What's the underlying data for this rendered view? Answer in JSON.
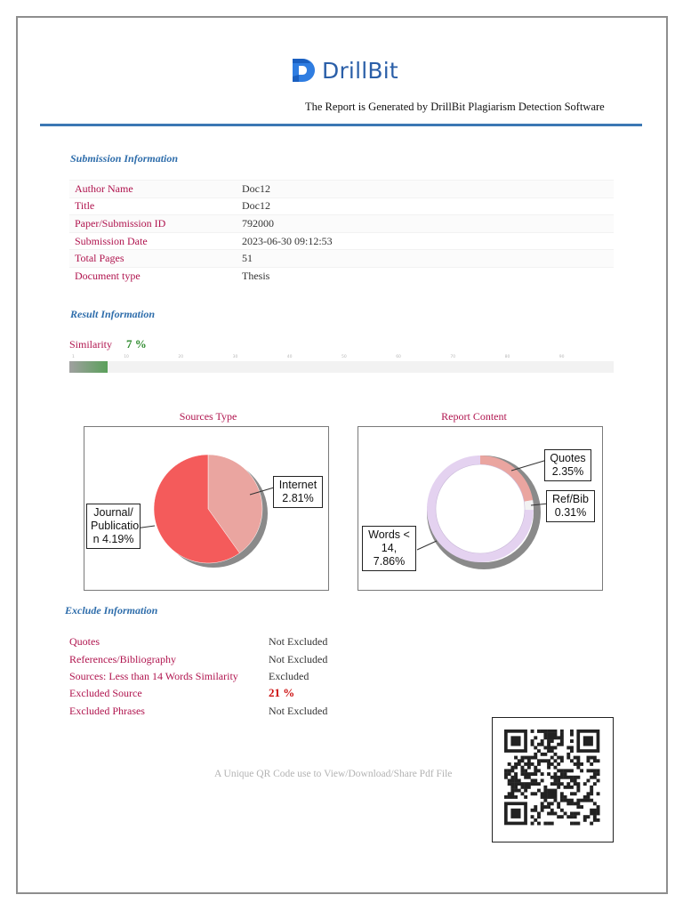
{
  "header": {
    "brand": "DrillBit",
    "tagline": "The Report is Generated by DrillBit Plagiarism Detection Software",
    "colors": {
      "brand": "#2b5fa8",
      "rule": "#3c78b4"
    }
  },
  "submission": {
    "title": "Submission Information",
    "rows": [
      {
        "label": "Author Name",
        "value": "Doc12"
      },
      {
        "label": "Title",
        "value": "Doc12"
      },
      {
        "label": "Paper/Submission ID",
        "value": "792000"
      },
      {
        "label": "Submission Date",
        "value": "2023-06-30 09:12:53"
      },
      {
        "label": "Total Pages",
        "value": "51"
      },
      {
        "label": "Document type",
        "value": "Thesis"
      }
    ]
  },
  "result": {
    "title": "Result Information",
    "similarity_label": "Similarity",
    "similarity_value": "7 %",
    "similarity_percent": 7,
    "scale_ticks": [
      "1",
      "10",
      "20",
      "30",
      "40",
      "50",
      "60",
      "70",
      "80",
      "90"
    ]
  },
  "chart_data": [
    {
      "type": "pie",
      "title": "Sources Type",
      "slices": [
        {
          "label": "Internet 2.81%",
          "value": 2.81,
          "color": "#eaa5a0"
        },
        {
          "label": "Journal/ Publication 4.19%",
          "value": 4.19,
          "color": "#f45b5b"
        }
      ]
    },
    {
      "type": "pie",
      "title": "Report Content",
      "donut": true,
      "slices": [
        {
          "label": "Quotes 2.35%",
          "value": 2.35,
          "color": "#eaa5a0"
        },
        {
          "label": "Ref/Bib 0.31%",
          "value": 0.31,
          "color": "#f2f2f2"
        },
        {
          "label": "Words < 14, 7.86%",
          "value": 7.86,
          "color": "#e4d2f0"
        }
      ]
    }
  ],
  "callouts": {
    "internet": [
      "Internet",
      "2.81%"
    ],
    "journal": [
      "Journal/",
      "Publicatio",
      "n 4.19%"
    ],
    "quotes": [
      "Quotes",
      "2.35%"
    ],
    "refbib": [
      "Ref/Bib",
      "0.31%"
    ],
    "words": [
      "Words <",
      "14,",
      "7.86%"
    ]
  },
  "exclude": {
    "title": "Exclude Information",
    "rows": [
      {
        "label": "Quotes",
        "value": "Not Excluded"
      },
      {
        "label": "References/Bibliography",
        "value": "Not Excluded"
      },
      {
        "label": "Sources: Less than 14 Words Similarity",
        "value": "Excluded"
      },
      {
        "label": "Excluded Source",
        "value": "21 %"
      },
      {
        "label": "Excluded Phrases",
        "value": "Not Excluded"
      }
    ]
  },
  "qr": {
    "caption": "A Unique QR Code use to View/Download/Share Pdf File"
  }
}
